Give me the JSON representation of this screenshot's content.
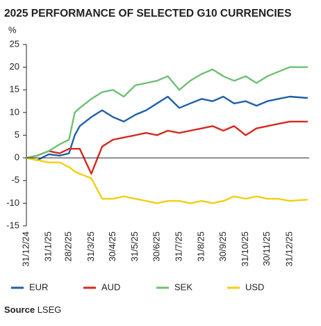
{
  "chart_data": {
    "type": "line",
    "title": "2025 PERFORMANCE OF SELECTED G10 CURRENCIES",
    "y_label": "%",
    "x": [
      "31/12/24",
      "15/1/25",
      "31/1/25",
      "15/2/25",
      "28/2/25",
      "8/3/25",
      "15/3/25",
      "31/3/25",
      "15/4/25",
      "30/4/25",
      "15/5/25",
      "31/5/25",
      "15/6/25",
      "30/6/25",
      "15/7/25",
      "31/7/25",
      "15/8/25",
      "31/8/25",
      "15/9/25",
      "30/9/25",
      "15/10/25",
      "31/10/25",
      "15/11/25",
      "30/11/25",
      "15/12/25",
      "31/12/25",
      "25/1/26"
    ],
    "series": [
      {
        "name": "EUR",
        "color": "#1f5fa8",
        "values": [
          0,
          -0.5,
          0.8,
          0.5,
          1,
          5,
          7,
          9,
          10.5,
          9,
          8,
          9.5,
          10.5,
          12,
          13.5,
          11,
          12,
          13,
          12.5,
          13.5,
          12,
          12.5,
          11.5,
          12.5,
          13,
          13.5,
          13.2
        ]
      },
      {
        "name": "AUD",
        "color": "#d6281f",
        "values": [
          0,
          0.5,
          1.5,
          1,
          2,
          2,
          2,
          -3.5,
          2.5,
          4,
          4.5,
          5,
          5.5,
          5,
          6,
          5.5,
          6,
          6.5,
          7,
          6,
          7,
          5,
          6.5,
          7,
          7.5,
          8,
          8
        ]
      },
      {
        "name": "SEK",
        "color": "#6fbf73",
        "values": [
          0,
          0.5,
          1.5,
          3,
          4,
          10,
          11,
          13,
          14.5,
          15,
          13.5,
          16,
          16.5,
          17,
          18,
          15,
          17,
          18.5,
          19.5,
          18,
          17,
          18,
          16.5,
          18,
          19,
          20,
          20
        ]
      },
      {
        "name": "USD",
        "color": "#f2cf10",
        "values": [
          0,
          -0.5,
          -1,
          -1,
          -2,
          -3,
          -3.5,
          -4.5,
          -9,
          -9,
          -8.5,
          -9,
          -9.5,
          -10,
          -9.5,
          -9.5,
          -10,
          -9.5,
          -10,
          -9.5,
          -8.5,
          -9,
          -8.5,
          -9,
          -9,
          -9.5,
          -9.2
        ]
      }
    ],
    "xlim": [
      "31/12/24",
      "27/1/26"
    ],
    "xticks": [
      "31/12/24",
      "31/1/25",
      "28/2/25",
      "31/3/25",
      "30/4/25",
      "31/5/25",
      "30/6/25",
      "31/7/25",
      "31/8/25",
      "30/9/25",
      "31/10/25",
      "30/11/25",
      "31/12/25"
    ],
    "ylim": [
      -15,
      25
    ],
    "yticks": [
      -15,
      -10,
      -5,
      0,
      5,
      10,
      15,
      20,
      25
    ],
    "source_label": "Source",
    "source": "LSEG"
  }
}
